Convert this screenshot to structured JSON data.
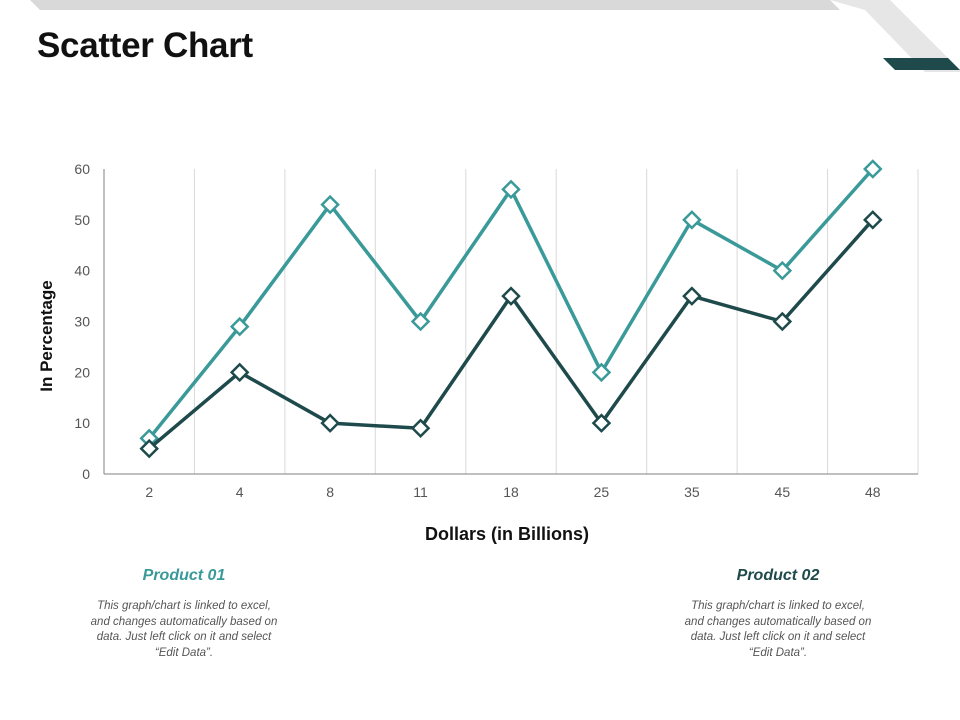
{
  "slide_title": "Scatter Chart",
  "colors": {
    "product_01": "#3a9999",
    "product_02": "#1f4a4c",
    "banner_light": "#d9d9d9",
    "banner_dark": "#1f4a4c",
    "gridline": "#d9d9d9",
    "axis": "#808080"
  },
  "chart_data": {
    "type": "line",
    "title": "",
    "xlabel": "Dollars (in Billions)",
    "ylabel": "In Percentage",
    "categories": [
      "2",
      "4",
      "8",
      "11",
      "18",
      "25",
      "35",
      "45",
      "48"
    ],
    "ylim": [
      0,
      60
    ],
    "yticks": [
      0,
      10,
      20,
      30,
      40,
      50,
      60
    ],
    "grid": "vertical",
    "marker": "diamond",
    "series": [
      {
        "name": "Product 01",
        "values": [
          7,
          29,
          53,
          30,
          56,
          20,
          50,
          40,
          60
        ]
      },
      {
        "name": "Product 02",
        "values": [
          5,
          20,
          10,
          9,
          35,
          10,
          35,
          30,
          50
        ]
      }
    ]
  },
  "captions": [
    {
      "title": "Product 01",
      "text": "This graph/chart is linked to excel, and changes automatically based on data. Just left click on it and select “Edit Data”."
    },
    {
      "title": "Product 02",
      "text": "This graph/chart is linked to excel, and changes automatically based on data. Just left click on it and select “Edit Data”."
    }
  ]
}
